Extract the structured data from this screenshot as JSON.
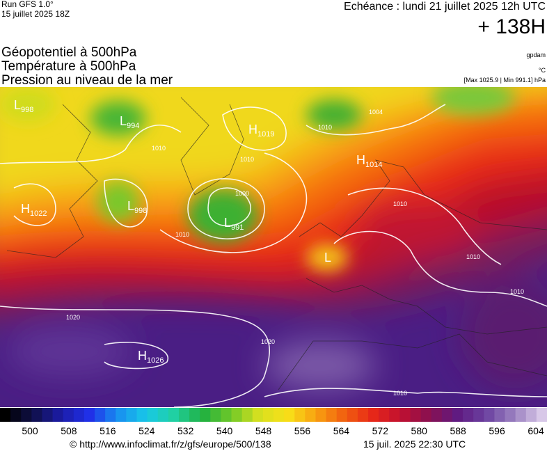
{
  "header": {
    "run": "Run GFS 1.0°",
    "date": "15 juillet 2025 18Z",
    "echeance": "Echéance : lundi 21 juillet 2025 12h UTC",
    "lead": "+ 138H"
  },
  "titles": [
    "Géopotentiel à 500hPa",
    "Température à 500hPa",
    "Pression au niveau de la mer"
  ],
  "units": [
    "gpdam",
    "°C",
    "[Max 1025.9 | Min 991.1] hPa"
  ],
  "centers": [
    {
      "letter": "L",
      "value": "998"
    },
    {
      "letter": "L",
      "value": "994"
    },
    {
      "letter": "H",
      "value": "1019"
    },
    {
      "letter": "H",
      "value": "1014"
    },
    {
      "letter": "H",
      "value": "1022"
    },
    {
      "letter": "L",
      "value": "998"
    },
    {
      "letter": "L",
      "value": "991"
    },
    {
      "letter": "L"
    },
    {
      "letter": "H",
      "value": "1026"
    }
  ],
  "isobar_labels": [
    "1004",
    "1010",
    "1010",
    "1010",
    "1000",
    "1010",
    "1010",
    "1010",
    "1010",
    "1020",
    "1020",
    "1010"
  ],
  "scale": {
    "labels": [
      500,
      508,
      516,
      524,
      532,
      540,
      548,
      556,
      564,
      572,
      580,
      588,
      596,
      604
    ]
  },
  "footer": {
    "url": "© http://www.infoclimat.fr/z/gfs/europe/500/138",
    "time": "15 juil. 2025 22:30 UTC"
  }
}
